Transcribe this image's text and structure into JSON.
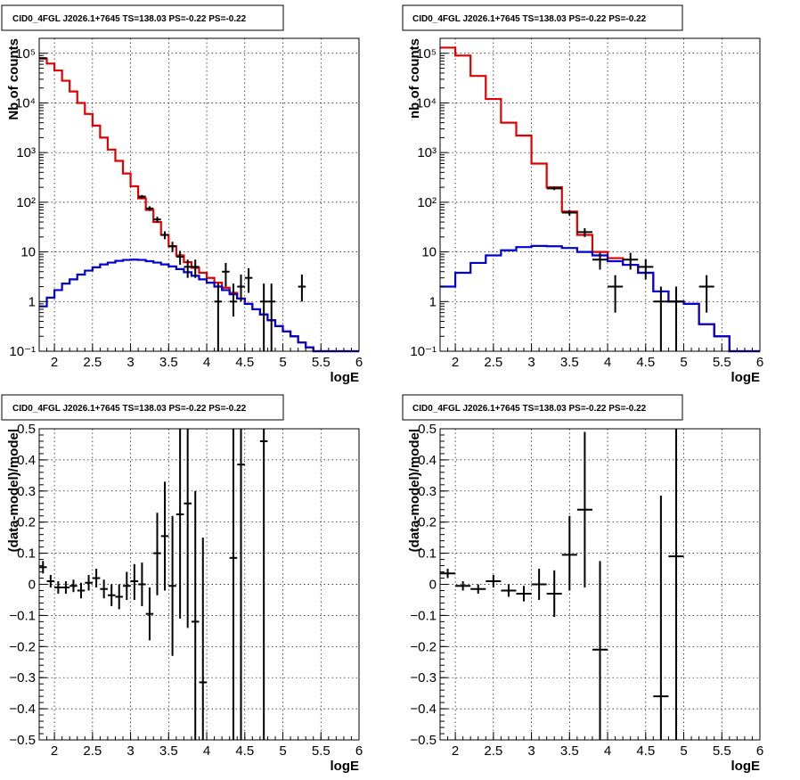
{
  "chart_data": [
    {
      "id": "counts-left",
      "type": "line",
      "title": "CID0_4FGL J2026.1+7645 TS=138.03 PS=-0.22 PS=-0.22",
      "xlabel": "logE",
      "ylabel": "Nb of counts",
      "xlim": [
        1.8,
        6
      ],
      "ylim": [
        0.1,
        200000
      ],
      "yscale": "log",
      "grid": true,
      "xticks": [
        2,
        2.5,
        3,
        3.5,
        4,
        4.5,
        5,
        5.5,
        6
      ],
      "xtick_labels": [
        "2",
        "2.5",
        "3",
        "3.5",
        "4",
        "4.5",
        "5",
        "5.5",
        "6"
      ],
      "yticks": [
        0.1,
        1,
        10,
        100,
        1000,
        10000,
        100000
      ],
      "ytick_labels": [
        "10⁻¹",
        "1",
        "10",
        "10²",
        "10³",
        "10⁴",
        "10⁵"
      ],
      "bin_edges": [
        1.8,
        1.9,
        2.0,
        2.1,
        2.2,
        2.3,
        2.4,
        2.5,
        2.6,
        2.7,
        2.8,
        2.9,
        3.0,
        3.1,
        3.2,
        3.3,
        3.4,
        3.5,
        3.6,
        3.7,
        3.8,
        3.9,
        4.0,
        4.1,
        4.2,
        4.3,
        4.4,
        4.5,
        4.6,
        4.7,
        4.8,
        4.9,
        5.0,
        5.1,
        5.2,
        5.3,
        5.4,
        5.5,
        5.6,
        5.7,
        5.8,
        5.9,
        6.0
      ],
      "series": [
        {
          "kind": "step",
          "color": "#e00000",
          "values": [
            78000,
            62000,
            45000,
            28000,
            17000,
            10000,
            6000,
            3500,
            2000,
            1150,
            680,
            380,
            210,
            120,
            70,
            40,
            22,
            13,
            8.5,
            6.2,
            4.8,
            3.8,
            3.0,
            2.4,
            1.9,
            1.5,
            1.15,
            0.9,
            0.7,
            0.55,
            0.42,
            0.32,
            0.25,
            0.2,
            0.15,
            0.12,
            0.1,
            0.1,
            0.1,
            0.1,
            0.1,
            0.1
          ]
        },
        {
          "kind": "step",
          "color": "#0000d0",
          "values": [
            0.8,
            1.2,
            1.7,
            2.3,
            2.8,
            3.5,
            4.2,
            4.9,
            5.6,
            6.1,
            6.6,
            6.9,
            7.0,
            6.9,
            6.5,
            6.1,
            5.6,
            5.1,
            4.5,
            3.9,
            3.3,
            2.8,
            2.4,
            2.0,
            1.7,
            1.4,
            1.15,
            0.9,
            0.7,
            0.55,
            0.42,
            0.32,
            0.25,
            0.2,
            0.15,
            0.12,
            0.1,
            0.1,
            0.1,
            0.1,
            0.1,
            0.1
          ]
        },
        {
          "kind": "errorbars",
          "color": "#000000",
          "points": [
            {
              "x": 1.85,
              "xerr": 0.05,
              "y": 80000,
              "ylo": 79000,
              "yhi": 81000
            },
            {
              "x": 3.15,
              "xerr": 0.05,
              "y": 130,
              "ylo": 120,
              "yhi": 140
            },
            {
              "x": 3.25,
              "xerr": 0.05,
              "y": 75,
              "ylo": 67,
              "yhi": 83
            },
            {
              "x": 3.35,
              "xerr": 0.05,
              "y": 45,
              "ylo": 39,
              "yhi": 51
            },
            {
              "x": 3.45,
              "xerr": 0.05,
              "y": 22,
              "ylo": 18,
              "yhi": 26
            },
            {
              "x": 3.55,
              "xerr": 0.05,
              "y": 13,
              "ylo": 10,
              "yhi": 16
            },
            {
              "x": 3.65,
              "xerr": 0.05,
              "y": 8,
              "ylo": 5.5,
              "yhi": 10.5
            },
            {
              "x": 3.75,
              "xerr": 0.05,
              "y": 5,
              "ylo": 3,
              "yhi": 7
            },
            {
              "x": 3.85,
              "xerr": 0.05,
              "y": 5,
              "ylo": 3,
              "yhi": 7
            },
            {
              "x": 4.15,
              "xerr": 0.05,
              "y": 1,
              "ylo": 0.1,
              "yhi": 2.3
            },
            {
              "x": 4.25,
              "xerr": 0.05,
              "y": 4,
              "ylo": 2,
              "yhi": 6
            },
            {
              "x": 4.35,
              "xerr": 0.05,
              "y": 1,
              "ylo": 0.5,
              "yhi": 2.3
            },
            {
              "x": 4.45,
              "xerr": 0.05,
              "y": 2,
              "ylo": 1,
              "yhi": 3.5
            },
            {
              "x": 4.55,
              "xerr": 0.05,
              "y": 3,
              "ylo": 1.5,
              "yhi": 4.7
            },
            {
              "x": 4.75,
              "xerr": 0.05,
              "y": 1,
              "ylo": 0.1,
              "yhi": 2.3
            },
            {
              "x": 4.85,
              "xerr": 0.05,
              "y": 1,
              "ylo": 0.1,
              "yhi": 2.3
            },
            {
              "x": 5.25,
              "xerr": 0.05,
              "y": 2,
              "ylo": 1,
              "yhi": 3.5
            }
          ]
        }
      ]
    },
    {
      "id": "counts-right",
      "type": "line",
      "title": "CID0_4FGL J2026.1+7645 TS=138.03 PS=-0.22 PS=-0.22",
      "xlabel": "logE",
      "ylabel": "nb of counts",
      "xlim": [
        1.8,
        6
      ],
      "ylim": [
        0.1,
        200000
      ],
      "yscale": "log",
      "grid": true,
      "xticks": [
        2,
        2.5,
        3,
        3.5,
        4,
        4.5,
        5,
        5.5,
        6
      ],
      "xtick_labels": [
        "2",
        "2.5",
        "3",
        "3.5",
        "4",
        "4.5",
        "5",
        "5.5",
        "6"
      ],
      "yticks": [
        0.1,
        1,
        10,
        100,
        1000,
        10000,
        100000
      ],
      "ytick_labels": [
        "10⁻¹",
        "1",
        "10",
        "10²",
        "10³",
        "10⁴",
        "10⁵"
      ],
      "bin_edges": [
        1.8,
        2.0,
        2.2,
        2.4,
        2.6,
        2.8,
        3.0,
        3.2,
        3.4,
        3.6,
        3.8,
        4.0,
        4.2,
        4.4,
        4.6,
        4.8,
        5.0,
        5.2,
        5.4,
        5.6,
        5.8,
        6.0
      ],
      "series": [
        {
          "kind": "step",
          "color": "#e00000",
          "values": [
            130000,
            90000,
            35000,
            12000,
            4000,
            2200,
            600,
            200,
            65,
            22,
            10,
            7.5,
            5.5,
            3.8,
            1.6,
            1.0,
            0.9,
            0.35,
            0.2,
            0.1,
            0.1
          ]
        },
        {
          "kind": "step",
          "color": "#0000d0",
          "values": [
            2.0,
            3.8,
            6.0,
            8.5,
            10.8,
            12.5,
            13.2,
            13.0,
            12.0,
            10.0,
            8.5,
            6.5,
            5.5,
            3.8,
            1.6,
            1.0,
            0.9,
            0.35,
            0.2,
            0.1,
            0.1
          ]
        },
        {
          "kind": "errorbars",
          "color": "#000000",
          "points": [
            {
              "x": 3.3,
              "xerr": 0.1,
              "y": 190,
              "ylo": 176,
              "yhi": 204
            },
            {
              "x": 3.5,
              "xerr": 0.1,
              "y": 62,
              "ylo": 54,
              "yhi": 70
            },
            {
              "x": 3.7,
              "xerr": 0.1,
              "y": 25,
              "ylo": 20,
              "yhi": 30
            },
            {
              "x": 3.9,
              "xerr": 0.1,
              "y": 7,
              "ylo": 4.4,
              "yhi": 9.6
            },
            {
              "x": 4.1,
              "xerr": 0.1,
              "y": 2,
              "ylo": 0.6,
              "yhi": 3.4
            },
            {
              "x": 4.3,
              "xerr": 0.1,
              "y": 7,
              "ylo": 4.4,
              "yhi": 9.6
            },
            {
              "x": 4.5,
              "xerr": 0.1,
              "y": 5,
              "ylo": 2.8,
              "yhi": 7.2
            },
            {
              "x": 4.7,
              "xerr": 0.1,
              "y": 1,
              "ylo": 0.1,
              "yhi": 2
            },
            {
              "x": 4.9,
              "xerr": 0.1,
              "y": 1,
              "ylo": 0.1,
              "yhi": 2
            },
            {
              "x": 5.3,
              "xerr": 0.1,
              "y": 2,
              "ylo": 0.6,
              "yhi": 3.4
            }
          ]
        }
      ]
    },
    {
      "id": "residuals-left",
      "type": "scatter",
      "title": "CID0_4FGL J2026.1+7645 TS=138.03 PS=-0.22 PS=-0.22",
      "xlabel": "logE",
      "ylabel": "(data-model)/model",
      "xlim": [
        1.8,
        6
      ],
      "ylim": [
        -0.5,
        0.5
      ],
      "yscale": "linear",
      "grid": true,
      "xticks": [
        2,
        2.5,
        3,
        3.5,
        4,
        4.5,
        5,
        5.5,
        6
      ],
      "xtick_labels": [
        "2",
        "2.5",
        "3",
        "3.5",
        "4",
        "4.5",
        "5",
        "5.5",
        "6"
      ],
      "yticks": [
        -0.5,
        -0.4,
        -0.3,
        -0.2,
        -0.1,
        0,
        0.1,
        0.2,
        0.3,
        0.4,
        0.5
      ],
      "ytick_labels": [
        "−0.5",
        "−0.4",
        "−0.3",
        "−0.2",
        "−0.1",
        "0",
        "0.1",
        "0.2",
        "0.3",
        "0.4",
        "0.5"
      ],
      "series": [
        {
          "kind": "errorbars",
          "color": "#000000",
          "points": [
            {
              "x": 1.85,
              "xerr": 0.05,
              "y": 0.055,
              "ylo": 0.035,
              "yhi": 0.075
            },
            {
              "x": 1.95,
              "xerr": 0.05,
              "y": 0.01,
              "ylo": -0.01,
              "yhi": 0.03
            },
            {
              "x": 2.05,
              "xerr": 0.05,
              "y": -0.01,
              "ylo": -0.03,
              "yhi": 0.01
            },
            {
              "x": 2.15,
              "xerr": 0.05,
              "y": -0.01,
              "ylo": -0.03,
              "yhi": 0.01
            },
            {
              "x": 2.25,
              "xerr": 0.05,
              "y": -0.005,
              "ylo": -0.025,
              "yhi": 0.015
            },
            {
              "x": 2.35,
              "xerr": 0.05,
              "y": -0.02,
              "ylo": -0.045,
              "yhi": 0.005
            },
            {
              "x": 2.45,
              "xerr": 0.05,
              "y": 0.005,
              "ylo": -0.02,
              "yhi": 0.03
            },
            {
              "x": 2.55,
              "xerr": 0.05,
              "y": 0.02,
              "ylo": -0.01,
              "yhi": 0.05
            },
            {
              "x": 2.65,
              "xerr": 0.05,
              "y": -0.015,
              "ylo": -0.045,
              "yhi": 0.015
            },
            {
              "x": 2.75,
              "xerr": 0.05,
              "y": -0.035,
              "ylo": -0.07,
              "yhi": 0.0
            },
            {
              "x": 2.85,
              "xerr": 0.05,
              "y": -0.04,
              "ylo": -0.08,
              "yhi": 0.0
            },
            {
              "x": 2.95,
              "xerr": 0.05,
              "y": -0.005,
              "ylo": -0.05,
              "yhi": 0.04
            },
            {
              "x": 3.05,
              "xerr": 0.05,
              "y": 0.01,
              "ylo": -0.05,
              "yhi": 0.065
            },
            {
              "x": 3.15,
              "xerr": 0.05,
              "y": 0.0,
              "ylo": -0.07,
              "yhi": 0.07
            },
            {
              "x": 3.25,
              "xerr": 0.05,
              "y": -0.095,
              "ylo": -0.18,
              "yhi": -0.01
            },
            {
              "x": 3.35,
              "xerr": 0.05,
              "y": 0.1,
              "ylo": -0.035,
              "yhi": 0.23
            },
            {
              "x": 3.45,
              "xerr": 0.05,
              "y": 0.155,
              "ylo": -0.02,
              "yhi": 0.33
            },
            {
              "x": 3.55,
              "xerr": 0.05,
              "y": -0.005,
              "ylo": -0.23,
              "yhi": 0.22
            },
            {
              "x": 3.65,
              "xerr": 0.05,
              "y": 0.225,
              "ylo": -0.11,
              "yhi": 0.5
            },
            {
              "x": 3.75,
              "xerr": 0.05,
              "y": 0.26,
              "ylo": -0.14,
              "yhi": 0.5
            },
            {
              "x": 3.85,
              "xerr": 0.05,
              "y": -0.12,
              "ylo": -0.5,
              "yhi": 0.3
            },
            {
              "x": 3.95,
              "xerr": 0.05,
              "y": -0.315,
              "ylo": -0.5,
              "yhi": 0.15
            },
            {
              "x": 4.35,
              "xerr": 0.05,
              "y": 0.085,
              "ylo": -0.5,
              "yhi": 0.5
            },
            {
              "x": 4.45,
              "xerr": 0.05,
              "y": 0.385,
              "ylo": -0.5,
              "yhi": 0.5
            },
            {
              "x": 4.75,
              "xerr": 0.05,
              "y": 0.46,
              "ylo": -0.5,
              "yhi": 0.5
            }
          ]
        }
      ]
    },
    {
      "id": "residuals-right",
      "type": "scatter",
      "title": "CID0_4FGL J2026.1+7645 TS=138.03 PS=-0.22 PS=-0.22",
      "xlabel": "logE",
      "ylabel": "(data-model)/model",
      "xlim": [
        1.8,
        6
      ],
      "ylim": [
        -0.5,
        0.5
      ],
      "yscale": "linear",
      "grid": true,
      "xticks": [
        2,
        2.5,
        3,
        3.5,
        4,
        4.5,
        5,
        5.5,
        6
      ],
      "xtick_labels": [
        "2",
        "2.5",
        "3",
        "3.5",
        "4",
        "4.5",
        "5",
        "5.5",
        "6"
      ],
      "yticks": [
        -0.5,
        -0.4,
        -0.3,
        -0.2,
        -0.1,
        0,
        0.1,
        0.2,
        0.3,
        0.4,
        0.5
      ],
      "ytick_labels": [
        "−0.5",
        "−0.4",
        "−0.3",
        "−0.2",
        "−0.1",
        "0",
        "0.1",
        "0.2",
        "0.3",
        "0.4",
        "0.5"
      ],
      "series": [
        {
          "kind": "errorbars",
          "color": "#000000",
          "points": [
            {
              "x": 1.9,
              "xerr": 0.1,
              "y": 0.035,
              "ylo": 0.02,
              "yhi": 0.05
            },
            {
              "x": 2.1,
              "xerr": 0.1,
              "y": -0.005,
              "ylo": -0.02,
              "yhi": 0.01
            },
            {
              "x": 2.3,
              "xerr": 0.1,
              "y": -0.015,
              "ylo": -0.03,
              "yhi": 0.0
            },
            {
              "x": 2.5,
              "xerr": 0.1,
              "y": 0.01,
              "ylo": -0.01,
              "yhi": 0.03
            },
            {
              "x": 2.7,
              "xerr": 0.1,
              "y": -0.02,
              "ylo": -0.04,
              "yhi": 0.0
            },
            {
              "x": 2.9,
              "xerr": 0.1,
              "y": -0.03,
              "ylo": -0.055,
              "yhi": -0.005
            },
            {
              "x": 3.1,
              "xerr": 0.1,
              "y": 0.0,
              "ylo": -0.05,
              "yhi": 0.05
            },
            {
              "x": 3.3,
              "xerr": 0.1,
              "y": -0.03,
              "ylo": -0.105,
              "yhi": 0.045
            },
            {
              "x": 3.5,
              "xerr": 0.1,
              "y": 0.095,
              "ylo": -0.02,
              "yhi": 0.22
            },
            {
              "x": 3.7,
              "xerr": 0.1,
              "y": 0.24,
              "ylo": -0.01,
              "yhi": 0.49
            },
            {
              "x": 3.9,
              "xerr": 0.1,
              "y": -0.21,
              "ylo": -0.5,
              "yhi": 0.075
            },
            {
              "x": 4.7,
              "xerr": 0.1,
              "y": -0.36,
              "ylo": -0.5,
              "yhi": 0.285
            },
            {
              "x": 4.9,
              "xerr": 0.1,
              "y": 0.09,
              "ylo": -0.5,
              "yhi": 0.5
            }
          ]
        }
      ]
    }
  ]
}
